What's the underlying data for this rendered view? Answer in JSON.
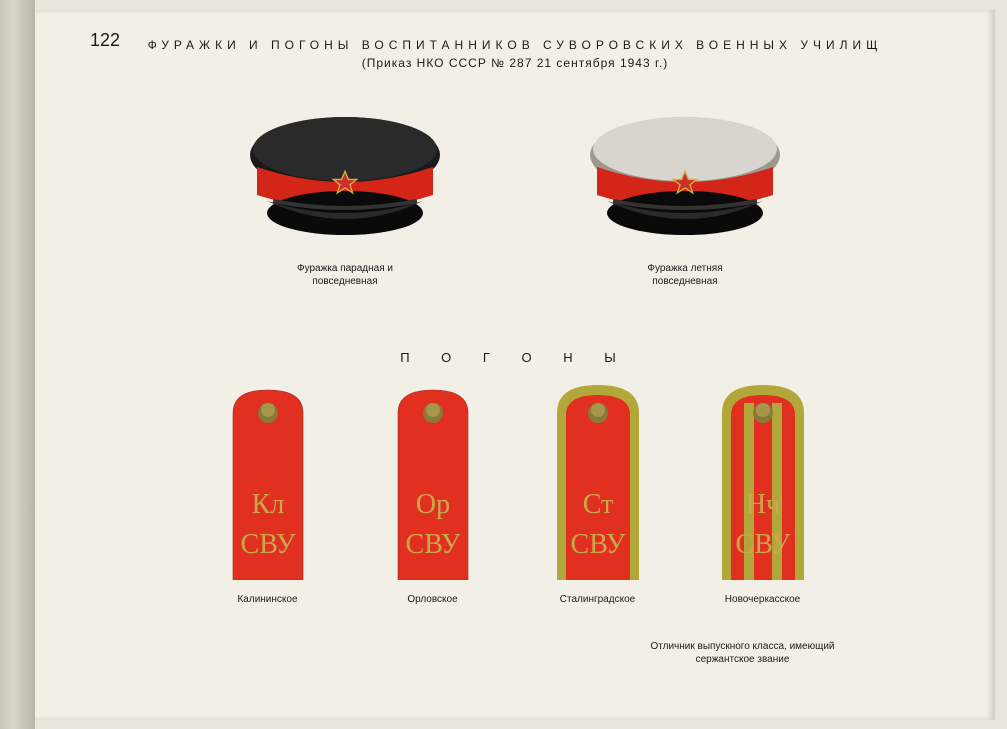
{
  "page_number": "122",
  "title": "ФУРАЖКИ И ПОГОНЫ ВОСПИТАННИКОВ СУВОРОВСКИХ ВОЕННЫХ УЧИЛИЩ",
  "subtitle": "(Приказ НКО СССР № 287 21 сентября 1943 г.)",
  "section_title": "П О Г О Н Ы",
  "caps": [
    {
      "label": "Фуражка парадная и\nповседневная",
      "crown_color": "#1a1a1a",
      "band_color": "#d32518",
      "visor_color": "#0a0a0a"
    },
    {
      "label": "Фуражка летняя\nповседневная",
      "crown_color": "#d8d5ce",
      "band_color": "#d32518",
      "visor_color": "#0a0a0a"
    }
  ],
  "boards": [
    {
      "label": "Калининское",
      "text1": "Кл",
      "text2": "СВУ",
      "base_color": "#e23020",
      "edge_color": "#e23020",
      "stripes": 0
    },
    {
      "label": "Орловское",
      "text1": "Ор",
      "text2": "СВУ",
      "base_color": "#e23020",
      "edge_color": "#e23020",
      "stripes": 0
    },
    {
      "label": "Сталинградское",
      "text1": "Ст",
      "text2": "СВУ",
      "base_color": "#e23020",
      "edge_color": "#b2a73a",
      "stripes": 0
    },
    {
      "label": "Новочеркасское",
      "text1": "Нч",
      "text2": "СВУ",
      "base_color": "#e23020",
      "edge_color": "#b2a73a",
      "stripes": 2
    }
  ],
  "footnote": "Отличник выпускного класса, имеющий\nсержантское звание",
  "colors": {
    "star_fill": "#c9302c",
    "star_edge": "#d4af37",
    "button": "#8a7a3a",
    "text_gold": "#c9a84a",
    "stripe": "#b2a73a"
  }
}
